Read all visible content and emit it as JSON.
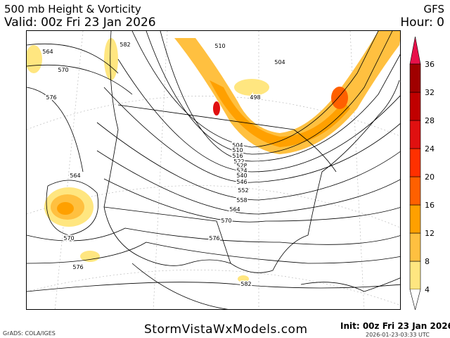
{
  "header": {
    "title": "500 mb Height & Vorticity",
    "valid": "Valid: 00z Fri 23 Jan 2026",
    "model": "GFS",
    "hour": "Hour: 0"
  },
  "footer": {
    "site": "StormVistaWxModels.com",
    "init": "Init: 00z Fri 23 Jan 2026",
    "timestamp": "2026-01-23-03:33 UTC",
    "credit": "GrADS: COLA/IGES"
  },
  "colorbar": {
    "levels": [
      "4",
      "8",
      "12",
      "16",
      "20",
      "24",
      "28",
      "32",
      "36"
    ],
    "colors": [
      "#ffe680",
      "#ffc040",
      "#ffa000",
      "#ff6000",
      "#ff3000",
      "#e01010",
      "#c00000",
      "#a00000",
      "#e8104a"
    ]
  },
  "map": {
    "contour_labels": [
      "564",
      "570",
      "576",
      "582",
      "510",
      "504",
      "498",
      "504",
      "510",
      "516",
      "522",
      "528",
      "534",
      "540",
      "546",
      "552",
      "558",
      "564",
      "570",
      "576",
      "582",
      "564",
      "570",
      "576"
    ]
  }
}
